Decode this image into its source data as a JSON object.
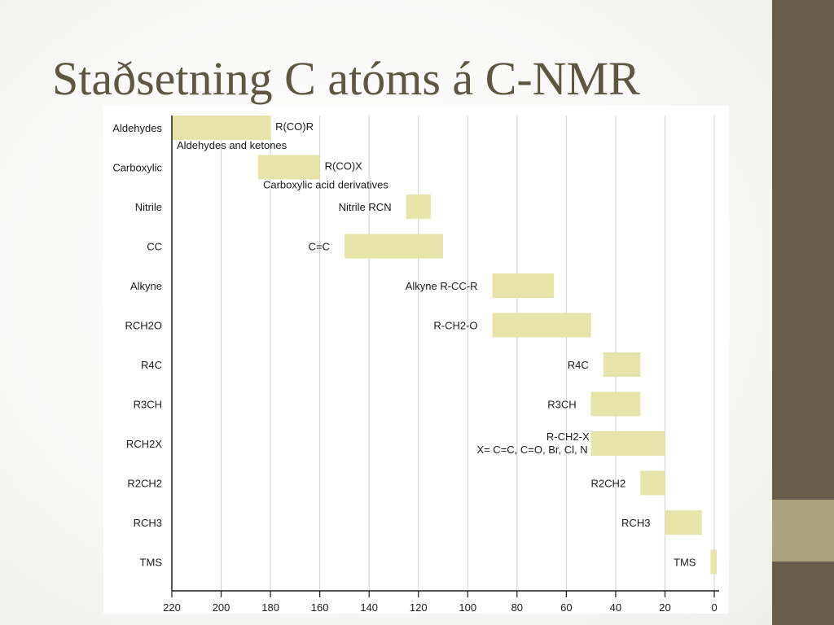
{
  "slide": {
    "title": "Staðsetning C atóms á C-NMR",
    "colors": {
      "band": "#665e48",
      "band_accent": "#a9a37f",
      "title": "#5d5640",
      "bar": "#e6e4a8"
    }
  },
  "chart_data": {
    "type": "bar",
    "orientation": "horizontal-range",
    "x_reversed": true,
    "xlim": [
      220,
      0
    ],
    "xticks": [
      220,
      200,
      180,
      160,
      140,
      120,
      100,
      80,
      60,
      40,
      20,
      0
    ],
    "grid": true,
    "title": "",
    "xlabel": "",
    "ylabel": "",
    "categories": [
      "Aldehydes",
      "Carboxylic",
      "Nitrile",
      "CC",
      "Alkyne",
      "RCH2O",
      "R4C",
      "R3CH",
      "RCH2X",
      "R2CH2",
      "RCH3",
      "TMS"
    ],
    "bars": [
      {
        "category": "Aldehydes",
        "from": 220,
        "to": 180,
        "annotation": "R(CO)R",
        "annotation_pos": "right",
        "subtitle": "Aldehydes and ketones"
      },
      {
        "category": "Carboxylic",
        "from": 185,
        "to": 160,
        "annotation": "R(CO)X",
        "annotation_pos": "right",
        "subtitle": "Carboxylic acid derivatives"
      },
      {
        "category": "Nitrile",
        "from": 125,
        "to": 115,
        "annotation": "Nitrile RCN",
        "annotation_pos": "left"
      },
      {
        "category": "CC",
        "from": 150,
        "to": 110,
        "annotation": "C=C",
        "annotation_pos": "left"
      },
      {
        "category": "Alkyne",
        "from": 90,
        "to": 65,
        "annotation": "Alkyne R-CC-R",
        "annotation_pos": "left"
      },
      {
        "category": "RCH2O",
        "from": 90,
        "to": 50,
        "annotation": "R-CH2-O",
        "annotation_pos": "left"
      },
      {
        "category": "R4C",
        "from": 45,
        "to": 30,
        "annotation": "R4C",
        "annotation_pos": "left"
      },
      {
        "category": "R3CH",
        "from": 50,
        "to": 30,
        "annotation": "R3CH",
        "annotation_pos": "left"
      },
      {
        "category": "RCH2X",
        "from": 50,
        "to": 20,
        "annotation": "R-CH2-X",
        "annotation2": "X= C=C, C=O, Br, Cl, N",
        "annotation_pos": "left"
      },
      {
        "category": "R2CH2",
        "from": 30,
        "to": 20,
        "annotation": "R2CH2",
        "annotation_pos": "left"
      },
      {
        "category": "RCH3",
        "from": 20,
        "to": 5,
        "annotation": "RCH3",
        "annotation_pos": "left"
      },
      {
        "category": "TMS",
        "from": 1.5,
        "to": -1,
        "annotation": "TMS",
        "annotation_pos": "left"
      }
    ]
  }
}
